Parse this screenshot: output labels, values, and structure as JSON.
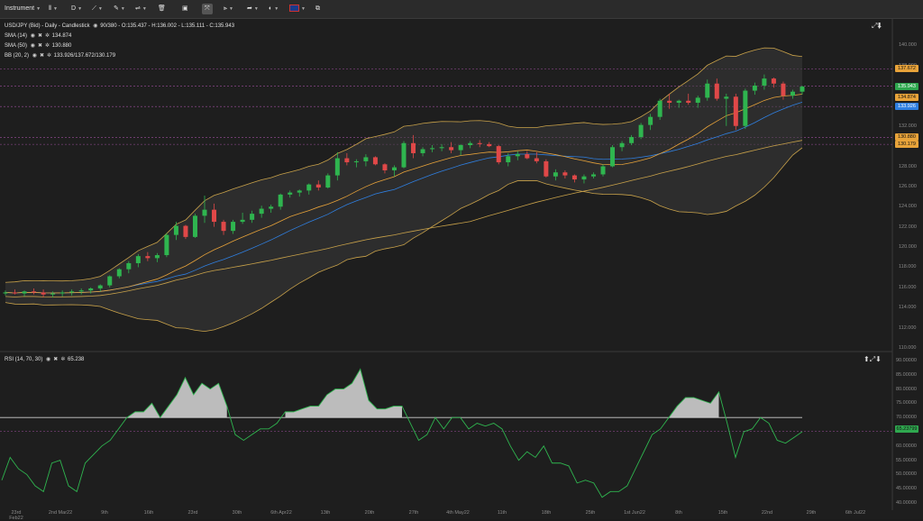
{
  "toolbar": {
    "instrument_label": "Instrument",
    "interval_label": "D"
  },
  "main_panel": {
    "title_line": "USD/JPY (Bid) - Daily - Candlestick",
    "ohlc": "90/380 - O:135.437 - H:136.002 - L:135.111 - C:135.943",
    "indicators": [
      {
        "name": "SMA (14)",
        "value": "134.874"
      },
      {
        "name": "SMA (50)",
        "value": "130.880"
      },
      {
        "name": "BB (20, 2)",
        "value": "133.926/137.672/130.179"
      }
    ],
    "y_ticks": [
      "140.000",
      "138.000",
      "136.000",
      "134.000",
      "132.000",
      "130.000",
      "128.000",
      "126.000",
      "124.000",
      "122.000",
      "120.000",
      "118.000",
      "116.000",
      "114.000",
      "112.000",
      "110.000"
    ],
    "price_tags": [
      {
        "label": "137.672",
        "color": "#e8a33a"
      },
      {
        "label": "135.943",
        "color": "#2fa84f"
      },
      {
        "label": "134.874",
        "color": "#e8a33a"
      },
      {
        "label": "133.926",
        "color": "#2f7fe0"
      },
      {
        "label": "130.880",
        "color": "#e8a33a"
      },
      {
        "label": "130.179",
        "color": "#e8a33a"
      }
    ]
  },
  "rsi_panel": {
    "title": "RSI (14, 70, 30)",
    "value": "65.238",
    "y_ticks": [
      "90.00000",
      "85.00000",
      "80.00000",
      "75.00000",
      "70.00000",
      "65.00000",
      "60.00000",
      "55.00000",
      "50.00000",
      "45.00000",
      "40.00000"
    ],
    "current_tag": "65.23799"
  },
  "x_axis": [
    "23rd Feb22",
    "2nd Mar22",
    "9th",
    "16th",
    "23rd",
    "30th",
    "6th Apr22",
    "13th",
    "20th",
    "27th",
    "4th May22",
    "11th",
    "18th",
    "25th",
    "1st Jun22",
    "8th",
    "15th",
    "22nd",
    "29th",
    "6th Jul22"
  ],
  "chart_data": {
    "type": "candlestick",
    "instrument": "USD/JPY (Bid) - Daily",
    "ylim": [
      110,
      141
    ],
    "candles": [
      [
        115.4,
        115.7,
        115.2,
        115.5
      ],
      [
        115.5,
        115.8,
        115.3,
        115.4
      ],
      [
        115.4,
        115.7,
        115.1,
        115.6
      ],
      [
        115.6,
        115.9,
        115.3,
        115.5
      ],
      [
        115.5,
        115.8,
        115.0,
        115.3
      ],
      [
        115.3,
        115.6,
        115.0,
        115.4
      ],
      [
        115.4,
        115.7,
        115.1,
        115.5
      ],
      [
        115.5,
        115.8,
        115.2,
        115.6
      ],
      [
        115.6,
        115.9,
        115.3,
        115.7
      ],
      [
        115.7,
        116.0,
        115.4,
        115.9
      ],
      [
        115.9,
        116.3,
        115.6,
        116.2
      ],
      [
        116.2,
        117.2,
        116.0,
        117.1
      ],
      [
        117.1,
        117.9,
        116.9,
        117.8
      ],
      [
        117.8,
        118.6,
        117.4,
        118.4
      ],
      [
        118.4,
        119.3,
        118.0,
        119.1
      ],
      [
        119.1,
        119.5,
        118.6,
        118.9
      ],
      [
        118.9,
        119.4,
        118.5,
        119.2
      ],
      [
        119.2,
        121.4,
        119.0,
        121.2
      ],
      [
        121.2,
        122.5,
        120.7,
        122.1
      ],
      [
        122.1,
        122.2,
        120.8,
        121.0
      ],
      [
        121.0,
        123.3,
        120.9,
        123.1
      ],
      [
        123.1,
        125.1,
        122.4,
        123.7
      ],
      [
        123.7,
        124.3,
        122.0,
        122.5
      ],
      [
        122.5,
        122.7,
        121.2,
        121.6
      ],
      [
        121.6,
        122.7,
        121.3,
        122.5
      ],
      [
        122.5,
        123.4,
        122.3,
        122.7
      ],
      [
        122.7,
        123.6,
        122.4,
        123.3
      ],
      [
        123.3,
        124.1,
        122.9,
        123.8
      ],
      [
        123.8,
        124.2,
        123.4,
        124.0
      ],
      [
        124.0,
        125.3,
        123.7,
        125.2
      ],
      [
        125.2,
        125.6,
        124.9,
        125.4
      ],
      [
        125.4,
        125.7,
        125.0,
        125.6
      ],
      [
        125.6,
        126.3,
        125.2,
        126.2
      ],
      [
        126.2,
        126.6,
        125.6,
        125.9
      ],
      [
        125.9,
        127.3,
        125.8,
        127.1
      ],
      [
        127.1,
        129.4,
        126.6,
        128.8
      ],
      [
        128.8,
        129.3,
        128.1,
        128.4
      ],
      [
        128.4,
        128.7,
        127.9,
        128.5
      ],
      [
        128.5,
        129.2,
        128.0,
        128.9
      ],
      [
        128.9,
        129.0,
        128.1,
        128.2
      ],
      [
        128.2,
        128.3,
        127.3,
        127.6
      ],
      [
        127.6,
        128.1,
        127.0,
        127.9
      ],
      [
        127.9,
        130.5,
        127.8,
        130.3
      ],
      [
        130.3,
        131.1,
        128.8,
        129.3
      ],
      [
        129.3,
        129.9,
        129.0,
        129.7
      ],
      [
        129.7,
        130.1,
        129.4,
        129.8
      ],
      [
        129.8,
        130.2,
        129.5,
        129.9
      ],
      [
        129.9,
        130.4,
        129.3,
        129.6
      ],
      [
        129.6,
        130.2,
        129.1,
        130.1
      ],
      [
        130.1,
        130.5,
        129.8,
        130.3
      ],
      [
        130.3,
        130.6,
        129.9,
        130.2
      ],
      [
        130.2,
        130.4,
        129.9,
        130.0
      ],
      [
        130.0,
        130.1,
        128.2,
        128.4
      ],
      [
        128.4,
        129.3,
        128.0,
        129.0
      ],
      [
        129.0,
        129.5,
        128.6,
        129.2
      ],
      [
        129.2,
        129.5,
        128.7,
        128.8
      ],
      [
        128.8,
        129.4,
        128.3,
        128.5
      ],
      [
        128.5,
        128.7,
        126.9,
        127.0
      ],
      [
        127.0,
        127.7,
        126.6,
        127.4
      ],
      [
        127.4,
        127.6,
        126.8,
        127.1
      ],
      [
        127.1,
        127.2,
        126.4,
        126.7
      ],
      [
        126.7,
        127.2,
        126.3,
        127.0
      ],
      [
        127.0,
        127.4,
        126.8,
        127.2
      ],
      [
        127.2,
        128.2,
        127.0,
        128.0
      ],
      [
        128.0,
        130.1,
        127.9,
        129.9
      ],
      [
        129.9,
        130.5,
        129.5,
        130.3
      ],
      [
        130.3,
        131.1,
        130.1,
        130.9
      ],
      [
        130.9,
        132.3,
        130.7,
        132.1
      ],
      [
        132.1,
        133.2,
        131.6,
        132.9
      ],
      [
        132.9,
        134.7,
        132.6,
        134.5
      ],
      [
        134.5,
        135.2,
        133.7,
        134.3
      ],
      [
        134.3,
        134.6,
        133.8,
        134.5
      ],
      [
        134.5,
        135.2,
        134.1,
        134.3
      ],
      [
        134.3,
        135.0,
        133.8,
        134.8
      ],
      [
        134.8,
        136.6,
        134.5,
        136.2
      ],
      [
        136.2,
        136.7,
        134.5,
        134.7
      ],
      [
        134.7,
        135.2,
        132.0,
        134.9
      ],
      [
        134.9,
        135.2,
        131.6,
        132.0
      ],
      [
        132.0,
        135.7,
        131.7,
        135.5
      ],
      [
        135.5,
        136.3,
        135.1,
        136.0
      ],
      [
        136.0,
        137.1,
        135.6,
        136.7
      ],
      [
        136.7,
        136.8,
        135.8,
        136.2
      ],
      [
        136.2,
        136.4,
        134.6,
        135.0
      ],
      [
        135.0,
        135.6,
        134.7,
        135.4
      ],
      [
        135.4,
        136.0,
        135.1,
        135.9
      ]
    ],
    "rsi": [
      48,
      56,
      52,
      50,
      46,
      44,
      54,
      55,
      46,
      44,
      54,
      57,
      60,
      62,
      66,
      70,
      72,
      72,
      75,
      70,
      74,
      78,
      84,
      78,
      82,
      80,
      82,
      74,
      64,
      62,
      64,
      66,
      66,
      68,
      72,
      72,
      73,
      74,
      74,
      78,
      80,
      80,
      82,
      87,
      76,
      73,
      73,
      74,
      74,
      68,
      62,
      64,
      70,
      66,
      70,
      70,
      66,
      68,
      67,
      68,
      66,
      60,
      55,
      58,
      56,
      60,
      54,
      54,
      53,
      47,
      48,
      47,
      42,
      44,
      44,
      46,
      52,
      58,
      64,
      66,
      70,
      74,
      77,
      77,
      76,
      75,
      79,
      68,
      56,
      65,
      66,
      70,
      68,
      62,
      61,
      63,
      65
    ],
    "bb_upper": [
      116.2,
      116.2,
      116.2,
      116.2,
      116.2,
      116.2,
      116.2,
      116.2,
      116.4,
      116.8,
      117.5,
      118.4,
      119.5,
      120.7,
      121.9,
      122.9,
      123.6,
      124.1,
      124.4,
      124.6,
      124.9,
      125.3,
      125.8,
      126.4,
      127.0,
      127.6,
      128.3,
      129.0,
      129.6,
      130.3,
      130.9,
      131.4,
      131.8,
      132.0,
      132.1,
      132.1,
      131.9,
      131.7,
      131.4,
      131.0,
      130.7,
      130.4,
      130.1,
      129.9,
      129.7,
      129.6,
      129.6,
      129.7,
      129.9,
      130.3,
      130.8,
      131.4,
      132.2,
      133.1,
      134.2,
      135.3,
      136.3,
      137.1,
      137.6,
      137.8,
      137.8,
      137.7
    ],
    "sma50": [
      115.2,
      115.2,
      115.3,
      115.4,
      115.5,
      115.7,
      115.9,
      116.1,
      116.4,
      116.7,
      117.0,
      117.4,
      117.8,
      118.2,
      118.6,
      119.0,
      119.3,
      119.6,
      119.9,
      120.3,
      120.7,
      121.1,
      121.6,
      122.1,
      122.6,
      123.1,
      123.6,
      124.1,
      124.6,
      125.1,
      125.6,
      126.0,
      126.4,
      126.8,
      127.2,
      127.5,
      127.8,
      128.1,
      128.5,
      128.9,
      129.3,
      129.7,
      130.1,
      130.5,
      130.9
    ]
  }
}
